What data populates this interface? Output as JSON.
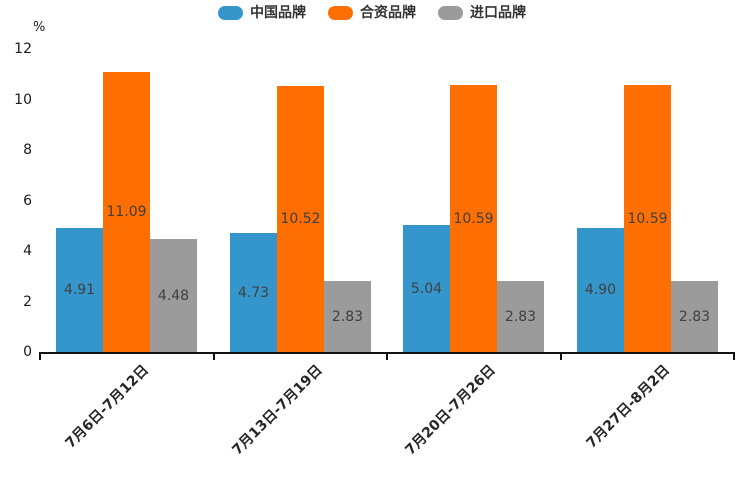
{
  "chart_data": {
    "type": "bar",
    "title": "",
    "ylabel": "%",
    "xlabel": "",
    "categories": [
      "7月6日-7月12日",
      "7月13日-7月19日",
      "7月20日-7月26日",
      "7月27日-8月2日"
    ],
    "series": [
      {
        "name": "中国品牌",
        "color": "#3496cb",
        "values": [
          4.91,
          4.73,
          5.04,
          4.9
        ]
      },
      {
        "name": "合资品牌",
        "color": "#ff6e00",
        "values": [
          11.09,
          10.52,
          10.59,
          10.59
        ]
      },
      {
        "name": "进口品牌",
        "color": "#9b9b9b",
        "values": [
          4.48,
          2.83,
          2.83,
          2.83
        ]
      }
    ],
    "ylim": [
      0,
      12
    ],
    "yticks": [
      0,
      2,
      4,
      6,
      8,
      10,
      12
    ],
    "grid": false,
    "legend_position": "top",
    "value_label_decimals": 2
  },
  "colors": {
    "axis": "#111111",
    "value_label": "#404040",
    "tick_label": "#1a1a1a",
    "legend_text": "#333333"
  }
}
